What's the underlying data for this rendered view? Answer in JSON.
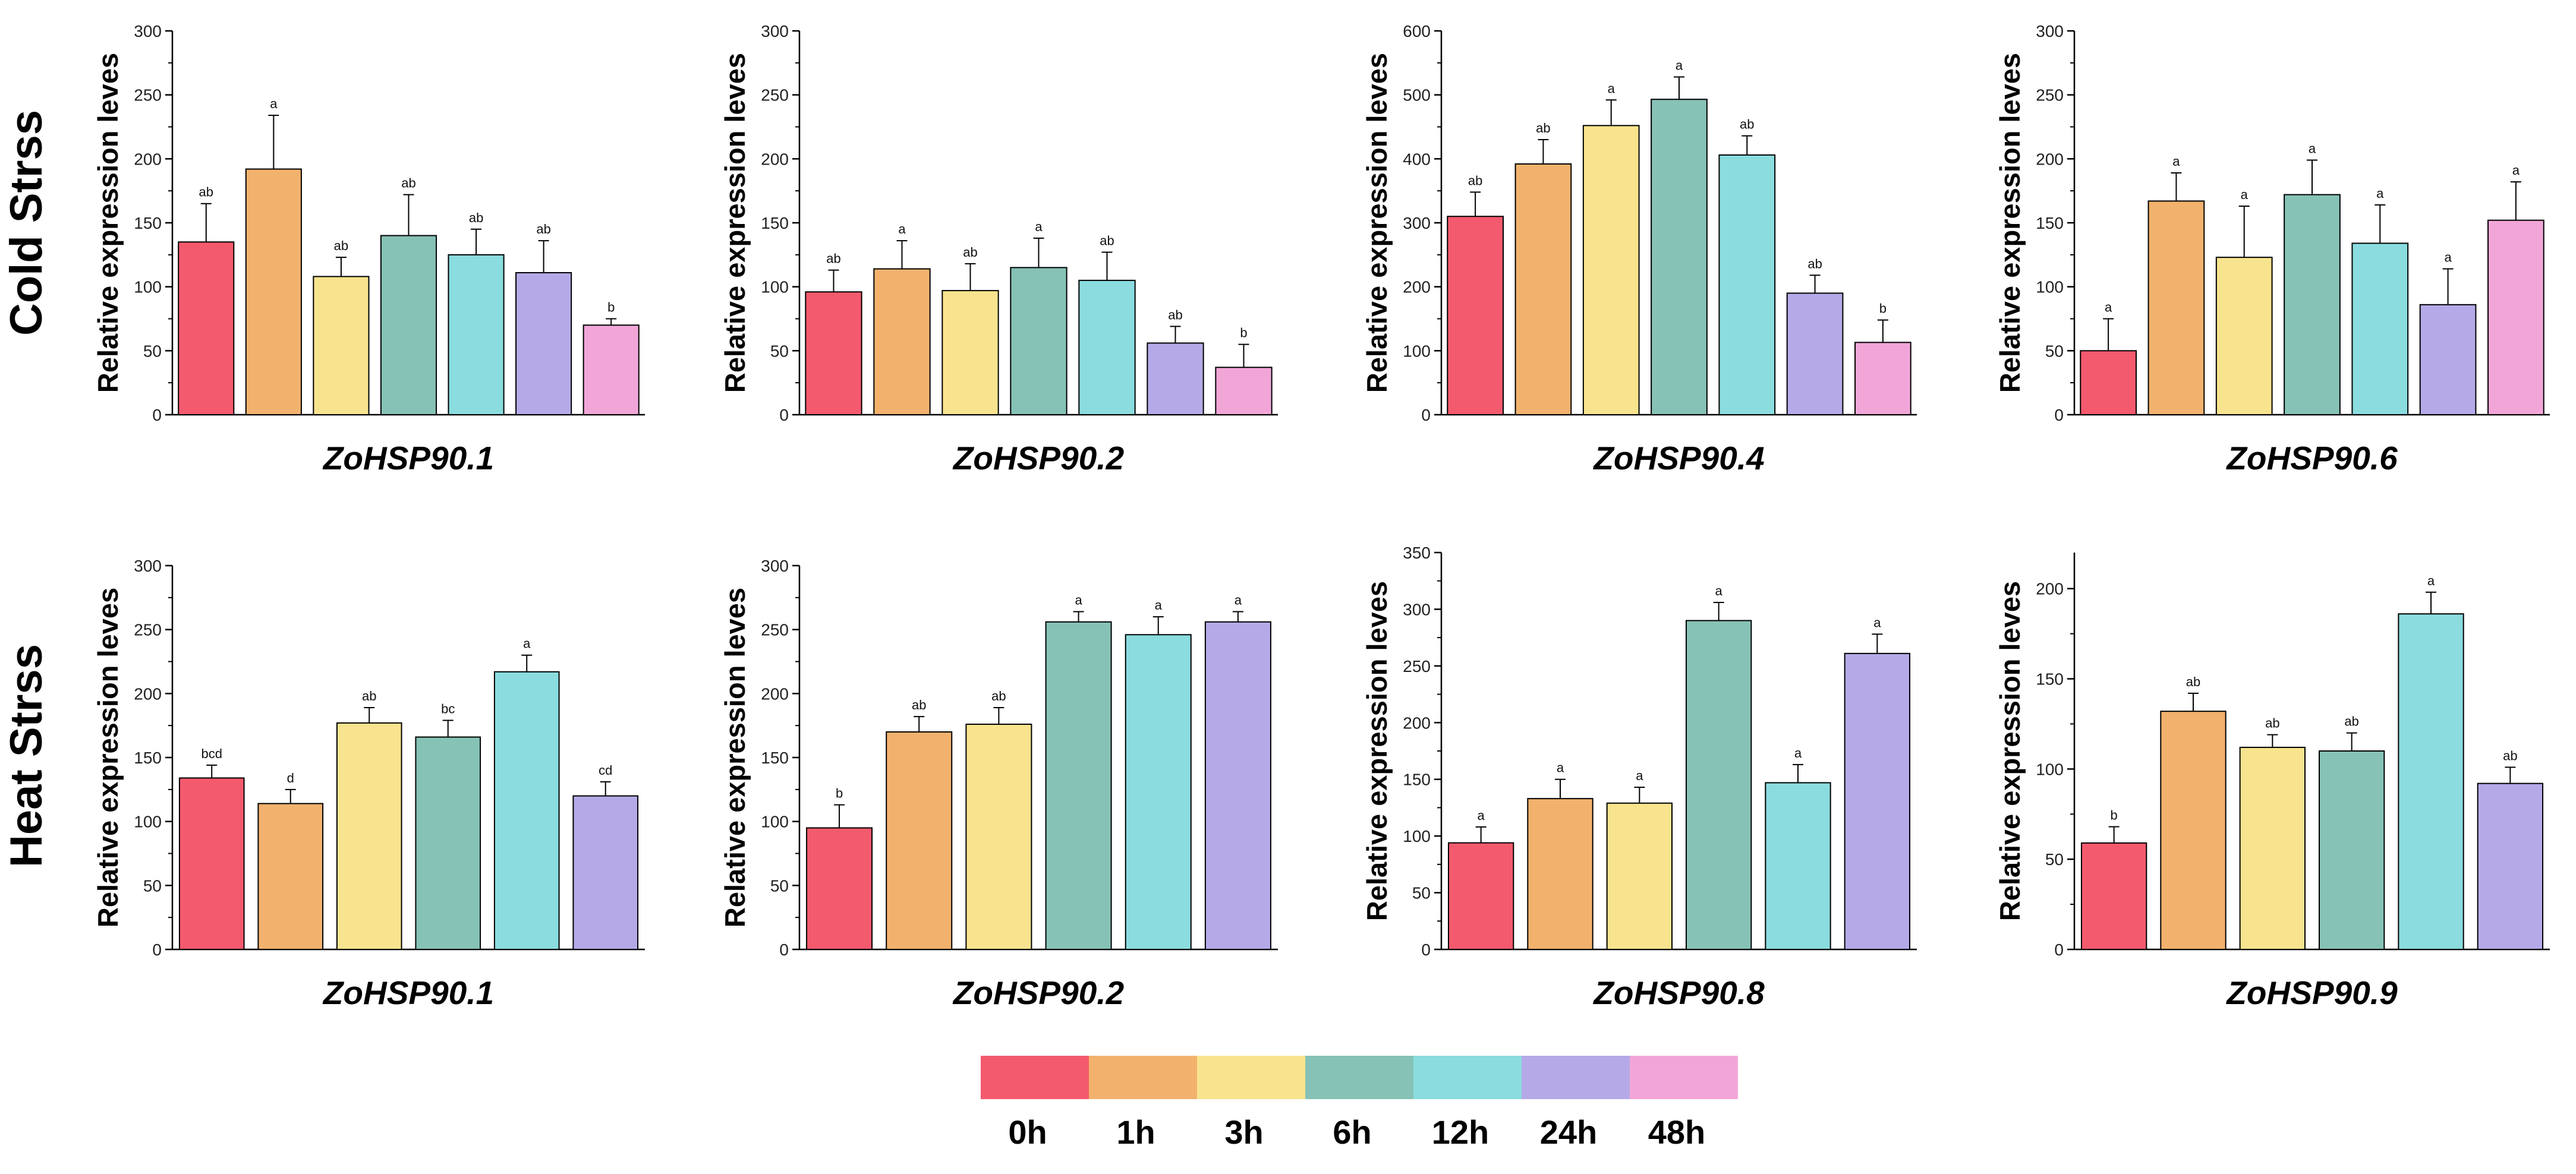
{
  "colors": [
    "#f45a6e",
    "#f2b26e",
    "#f8e48e",
    "#86c2b6",
    "#8adcdf",
    "#b6a9e8",
    "#f2a6d8"
  ],
  "legend": [
    "0h",
    "1h",
    "3h",
    "6h",
    "12h",
    "24h",
    "48h"
  ],
  "rows": [
    "Cold  Strss",
    "Heat  Strss"
  ],
  "chart_data": [
    {
      "type": "bar",
      "row": "Cold  Strss",
      "title": "ZoHSP90.1",
      "ylabel": "Relative expression leves",
      "ylim": [
        0,
        300
      ],
      "yticks": [
        0,
        50,
        100,
        150,
        200,
        250,
        300
      ],
      "categories": [
        "0h",
        "1h",
        "3h",
        "6h",
        "12h",
        "24h",
        "48h"
      ],
      "values": [
        135,
        192,
        108,
        140,
        125,
        111,
        70
      ],
      "errors": [
        30,
        42,
        15,
        32,
        20,
        25,
        5
      ],
      "labels": [
        "ab",
        "a",
        "ab",
        "ab",
        "ab",
        "ab",
        "b"
      ]
    },
    {
      "type": "bar",
      "row": "Cold  Strss",
      "title": "ZoHSP90.2",
      "ylabel": "Relative expression leves",
      "ylim": [
        0,
        300
      ],
      "yticks": [
        0,
        50,
        100,
        150,
        200,
        250,
        300
      ],
      "categories": [
        "0h",
        "1h",
        "3h",
        "6h",
        "12h",
        "24h",
        "48h"
      ],
      "values": [
        96,
        114,
        97,
        115,
        105,
        56,
        37
      ],
      "errors": [
        17,
        22,
        21,
        23,
        22,
        13,
        18
      ],
      "labels": [
        "ab",
        "a",
        "ab",
        "a",
        "ab",
        "ab",
        "b"
      ]
    },
    {
      "type": "bar",
      "row": "Cold  Strss",
      "title": "ZoHSP90.4",
      "ylabel": "Relative expression leves",
      "ylim": [
        0,
        600
      ],
      "yticks": [
        0,
        100,
        200,
        300,
        400,
        500,
        600
      ],
      "categories": [
        "0h",
        "1h",
        "3h",
        "6h",
        "12h",
        "24h",
        "48h"
      ],
      "values": [
        310,
        392,
        452,
        493,
        406,
        190,
        113
      ],
      "errors": [
        38,
        38,
        40,
        35,
        30,
        28,
        35
      ],
      "labels": [
        "ab",
        "ab",
        "a",
        "a",
        "ab",
        "ab",
        "b"
      ]
    },
    {
      "type": "bar",
      "row": "Cold  Strss",
      "title": "ZoHSP90.6",
      "ylabel": "Relative expression leves",
      "ylim": [
        0,
        300
      ],
      "yticks": [
        0,
        50,
        100,
        150,
        200,
        250,
        300
      ],
      "categories": [
        "0h",
        "1h",
        "3h",
        "6h",
        "12h",
        "24h",
        "48h"
      ],
      "values": [
        50,
        167,
        123,
        172,
        134,
        86,
        152
      ],
      "errors": [
        25,
        22,
        40,
        27,
        30,
        28,
        30
      ],
      "labels": [
        "a",
        "a",
        "a",
        "a",
        "a",
        "a",
        "a"
      ]
    },
    {
      "type": "bar",
      "row": "Heat  Strss",
      "title": "ZoHSP90.1",
      "ylabel": "Relative expression leves",
      "ylim": [
        0,
        300
      ],
      "yticks": [
        0,
        50,
        100,
        150,
        200,
        250,
        300
      ],
      "categories": [
        "0h",
        "1h",
        "3h",
        "6h",
        "12h",
        "24h"
      ],
      "values": [
        134,
        114,
        177,
        166,
        217,
        120
      ],
      "errors": [
        10,
        11,
        12,
        13,
        13,
        11
      ],
      "labels": [
        "bcd",
        "d",
        "ab",
        "bc",
        "a",
        "cd"
      ]
    },
    {
      "type": "bar",
      "row": "Heat  Strss",
      "title": "ZoHSP90.2",
      "ylabel": "Relative expression leves",
      "ylim": [
        0,
        300
      ],
      "yticks": [
        0,
        50,
        100,
        150,
        200,
        250,
        300
      ],
      "categories": [
        "0h",
        "1h",
        "3h",
        "6h",
        "12h",
        "24h"
      ],
      "values": [
        95,
        170,
        176,
        256,
        246,
        256
      ],
      "errors": [
        18,
        12,
        13,
        8,
        14,
        8
      ],
      "labels": [
        "b",
        "ab",
        "ab",
        "a",
        "a",
        "a"
      ]
    },
    {
      "type": "bar",
      "row": "Heat  Strss",
      "title": "ZoHSP90.8",
      "ylabel": "Relative expression leves",
      "ylim": [
        0,
        350
      ],
      "yticks": [
        0,
        50,
        100,
        150,
        200,
        250,
        300,
        350
      ],
      "categories": [
        "0h",
        "1h",
        "3h",
        "6h",
        "12h",
        "24h"
      ],
      "values": [
        94,
        133,
        129,
        290,
        147,
        261
      ],
      "errors": [
        14,
        17,
        14,
        16,
        16,
        17
      ],
      "labels": [
        "a",
        "a",
        "a",
        "a",
        "a",
        "a"
      ]
    },
    {
      "type": "bar",
      "row": "Heat  Strss",
      "title": "ZoHSP90.9",
      "ylabel": "Relative expression leves",
      "ylim": [
        0,
        220
      ],
      "yticks": [
        0,
        50,
        100,
        150,
        200
      ],
      "categories": [
        "0h",
        "1h",
        "3h",
        "6h",
        "12h",
        "24h"
      ],
      "values": [
        59,
        132,
        112,
        110,
        186,
        92
      ],
      "errors": [
        9,
        10,
        7,
        10,
        12,
        9
      ],
      "labels": [
        "b",
        "ab",
        "ab",
        "ab",
        "a",
        "ab"
      ]
    }
  ]
}
